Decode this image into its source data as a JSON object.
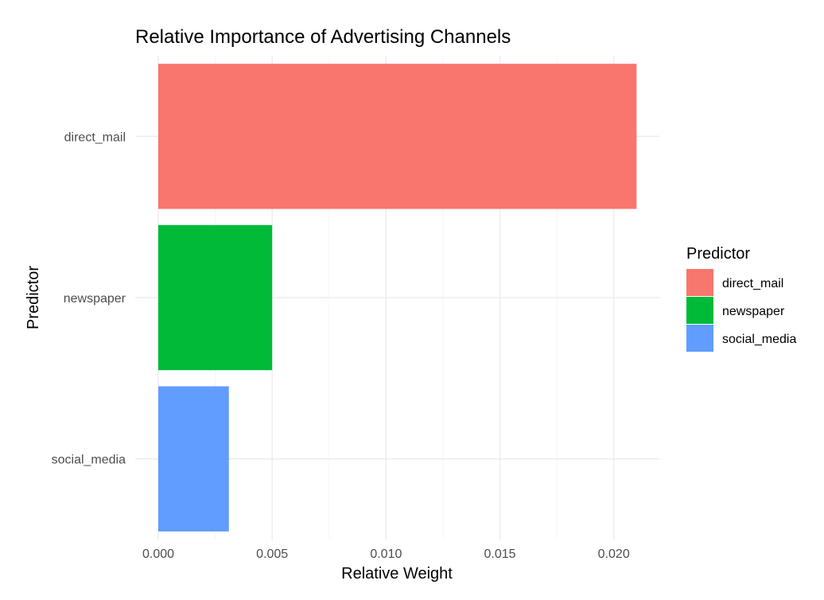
{
  "chart_data": {
    "type": "bar",
    "orientation": "horizontal",
    "title": "Relative Importance of Advertising Channels",
    "xlabel": "Relative Weight",
    "ylabel": "Predictor",
    "categories": [
      "direct_mail",
      "newspaper",
      "social_media"
    ],
    "values": [
      0.021,
      0.005,
      0.0031
    ],
    "colors": [
      "#F8766D",
      "#00BA38",
      "#619CFF"
    ],
    "xlim": [
      0,
      0.022
    ],
    "xticks": [
      0.0,
      0.005,
      0.01,
      0.015,
      0.02
    ],
    "xtick_labels": [
      "0.000",
      "0.005",
      "0.010",
      "0.015",
      "0.020"
    ],
    "grid": true,
    "legend": {
      "title": "Predictor",
      "position": "right",
      "items": [
        "direct_mail",
        "newspaper",
        "social_media"
      ]
    }
  }
}
